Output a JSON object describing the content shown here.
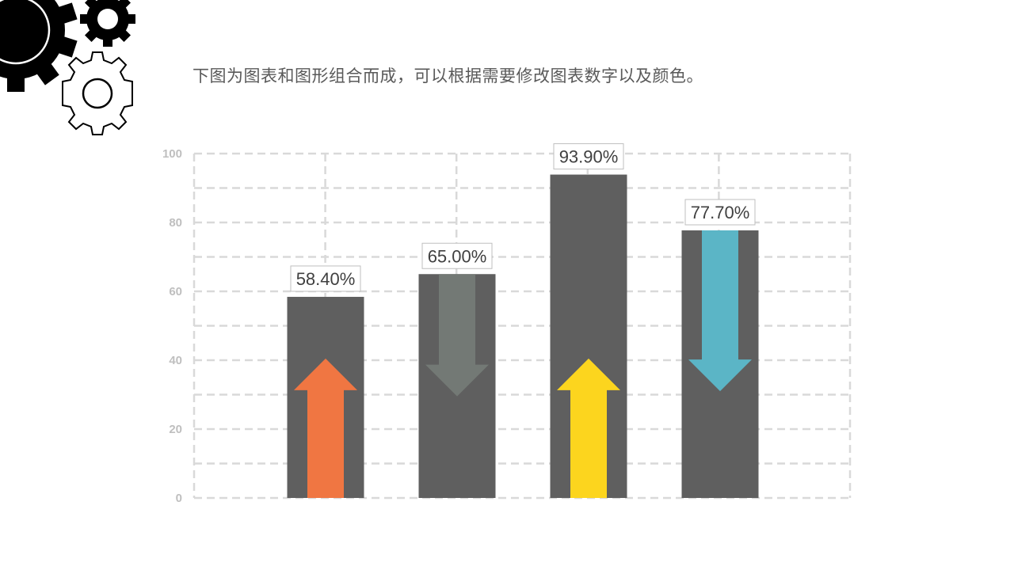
{
  "subtitle": "下图为图表和图形组合而成，可以根据需要修改图表数字以及颜色。",
  "chart_data": {
    "type": "bar",
    "categories": [
      "",
      "",
      "",
      ""
    ],
    "values": [
      58.4,
      65.0,
      93.9,
      77.7
    ],
    "data_labels": [
      "58.40%",
      "65.00%",
      "93.90%",
      "77.70%"
    ],
    "ylim": [
      0,
      100
    ],
    "yticks": [
      0,
      20,
      40,
      60,
      80,
      100
    ],
    "ytick_labels": [
      "0",
      "20",
      "40",
      "60",
      "80",
      "100"
    ],
    "grid": true,
    "grid_style": "dashed",
    "bar_color": "#5f5f5f",
    "arrows": [
      {
        "direction": "up",
        "color": "#f07642"
      },
      {
        "direction": "down",
        "color": "#737975"
      },
      {
        "direction": "up",
        "color": "#fcd51e"
      },
      {
        "direction": "down",
        "color": "#5bb5c6"
      }
    ]
  },
  "colors": {
    "gridline": "#d9d9d9",
    "tick_label": "#bfbfbf",
    "text": "#595959"
  },
  "decoration": {
    "icons": [
      "gear-large-icon",
      "gear-small-black-icon",
      "gear-outline-icon"
    ]
  }
}
